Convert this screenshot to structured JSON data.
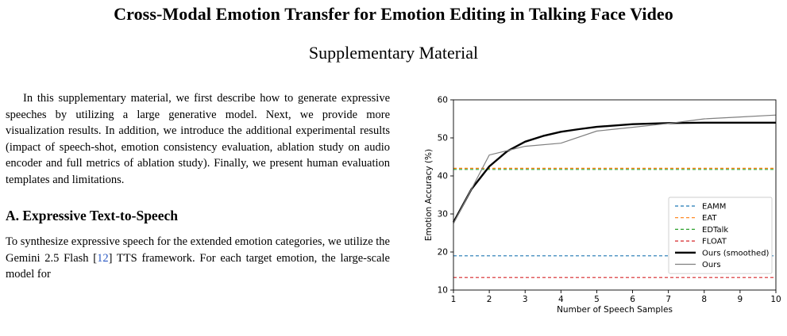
{
  "paper": {
    "title": "Cross-Modal Emotion Transfer for Emotion Editing in Talking Face Video",
    "subtitle": "Supplementary Material",
    "intro": "In this supplementary material, we first describe how to generate expressive speeches by utilizing a large generative model. Next, we provide more visualization results. In addition, we introduce the additional experimental results (impact of speech-shot, emotion consistency evaluation, ablation study on audio encoder and full metrics of ablation study). Finally, we present human evaluation templates and limitations.",
    "section_a_heading": "A. Expressive Text-to-Speech",
    "section_a_text_before_cite": "To synthesize expressive speech for the extended emotion categories, we utilize the Gemini 2.5 Flash [",
    "section_a_cite": "12",
    "section_a_text_after_cite": "] TTS framework. For each target emotion, the large-scale model for"
  },
  "chart_data": {
    "type": "line",
    "xlabel": "Number of Speech Samples",
    "ylabel": "Emotion Accuracy (%)",
    "xlim": [
      1,
      10
    ],
    "ylim": [
      10,
      60
    ],
    "xticks": [
      1,
      2,
      3,
      4,
      5,
      6,
      7,
      8,
      9,
      10
    ],
    "yticks": [
      10,
      20,
      30,
      40,
      50,
      60
    ],
    "grid": false,
    "legend_position": "bottom-right",
    "series": [
      {
        "name": "EAMM",
        "style": "dashed",
        "color": "#1f77b4",
        "x": [
          1,
          10
        ],
        "y": [
          19.0,
          19.0
        ]
      },
      {
        "name": "EAT",
        "style": "dashed",
        "color": "#ff7f0e",
        "x": [
          1,
          10
        ],
        "y": [
          42.0,
          42.0
        ]
      },
      {
        "name": "EDTalk",
        "style": "dashed",
        "color": "#2ca02c",
        "x": [
          1,
          10
        ],
        "y": [
          41.7,
          41.7
        ]
      },
      {
        "name": "FLOAT",
        "style": "dashed",
        "color": "#d62728",
        "x": [
          1,
          10
        ],
        "y": [
          13.3,
          13.3
        ]
      },
      {
        "name": "Ours (smoothed)",
        "style": "solid-bold",
        "color": "#000000",
        "x": [
          1,
          1.5,
          2,
          2.5,
          3,
          3.5,
          4,
          4.5,
          5,
          6,
          7,
          8,
          9,
          10
        ],
        "y": [
          27.8,
          36.5,
          42.5,
          46.5,
          49.0,
          50.5,
          51.6,
          52.3,
          52.9,
          53.6,
          53.9,
          54.0,
          54.0,
          54.0
        ]
      },
      {
        "name": "Ours",
        "style": "solid",
        "color": "#7f7f7f",
        "x": [
          1,
          2,
          3,
          4,
          5,
          6,
          7,
          8,
          9,
          10
        ],
        "y": [
          27.5,
          45.5,
          47.8,
          48.6,
          51.8,
          52.8,
          53.8,
          55.0,
          55.5,
          56.0
        ]
      }
    ]
  }
}
